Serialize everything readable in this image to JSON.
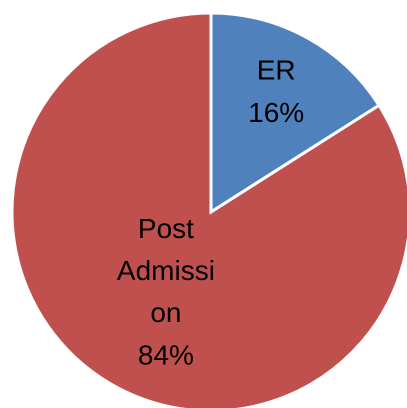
{
  "chart_data": {
    "type": "pie",
    "categories": [
      "ER",
      "Post Admission"
    ],
    "values": [
      16,
      84
    ],
    "value_labels": [
      "16%",
      "84%"
    ],
    "colors": [
      "#4f81bd",
      "#c0504d"
    ]
  }
}
